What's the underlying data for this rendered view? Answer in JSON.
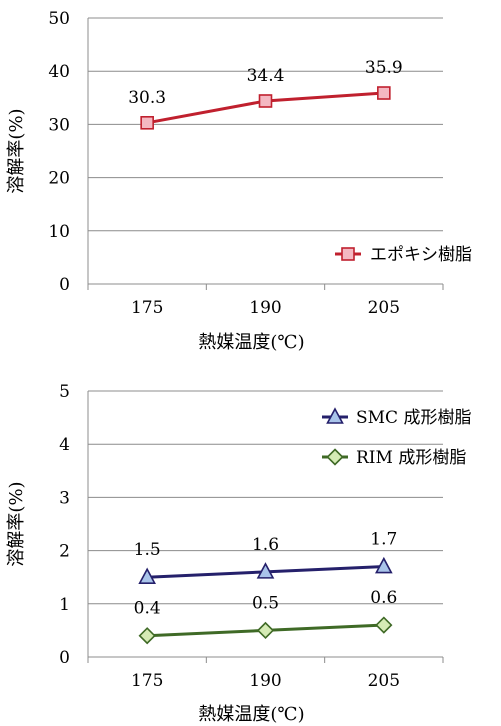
{
  "chart_data": [
    {
      "type": "line",
      "categories": [
        "175",
        "190",
        "205"
      ],
      "xlabel": "熱媒温度(℃)",
      "ylabel": "溶解率(%)",
      "ylim": [
        0,
        50
      ],
      "yticks": [
        0,
        10,
        20,
        30,
        40,
        50
      ],
      "grid": "horizontal major gridlines",
      "legend_position": "bottom-right",
      "series": [
        {
          "name": "エポキシ樹脂",
          "values": [
            30.3,
            34.4,
            35.9
          ],
          "labels": [
            "30.3",
            "34.4",
            "35.9"
          ],
          "color": "#c0202e",
          "marker": "square",
          "marker_fill": "#f4b8c2"
        }
      ]
    },
    {
      "type": "line",
      "categories": [
        "175",
        "190",
        "205"
      ],
      "xlabel": "熱媒温度(℃)",
      "ylabel": "溶解率(%)",
      "ylim": [
        0,
        5
      ],
      "yticks": [
        0,
        1,
        2,
        3,
        4,
        5
      ],
      "grid": "horizontal major gridlines",
      "legend_position": "top-right",
      "series": [
        {
          "name": "SMC 成形樹脂",
          "values": [
            1.5,
            1.6,
            1.7
          ],
          "labels": [
            "1.5",
            "1.6",
            "1.7"
          ],
          "color": "#25206b",
          "marker": "triangle",
          "marker_fill": "#a9c4ea"
        },
        {
          "name": "RIM 成形樹脂",
          "values": [
            0.4,
            0.5,
            0.6
          ],
          "labels": [
            "0.4",
            "0.5",
            "0.6"
          ],
          "color": "#3f6a26",
          "marker": "diamond",
          "marker_fill": "#d5ebb5"
        }
      ]
    }
  ]
}
